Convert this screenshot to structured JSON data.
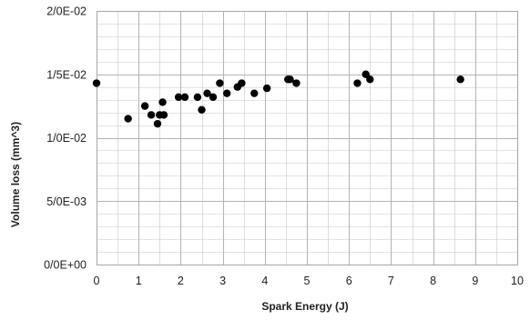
{
  "chart_data": {
    "type": "scatter",
    "title": "",
    "xlabel": "Spark Energy (J)",
    "ylabel": "Volume loss (mm^3)",
    "xlim": [
      0,
      10
    ],
    "ylim": [
      0,
      0.02
    ],
    "x_ticks": [
      0,
      1,
      2,
      3,
      4,
      5,
      6,
      7,
      8,
      9,
      10
    ],
    "x_tick_labels": [
      "0",
      "1",
      "2",
      "3",
      "4",
      "5",
      "6",
      "7",
      "8",
      "9",
      "10"
    ],
    "y_ticks": [
      0,
      0.005,
      0.01,
      0.015,
      0.02
    ],
    "y_tick_labels": [
      "0/0E+00",
      "5/0E-03",
      "1/0E-02",
      "1/5E-02",
      "2/0E-02"
    ],
    "grid": {
      "major": true,
      "minor": true,
      "minor_x_step": 0.5,
      "minor_y_step": 0.001
    },
    "legend": "none",
    "marker_color": "#000000",
    "grid_color": "#c8c8c8",
    "series": [
      {
        "x": [
          0,
          0.75,
          1.15,
          1.3,
          1.45,
          1.5,
          1.57,
          1.6,
          1.95,
          2.1,
          2.4,
          2.5,
          2.63,
          2.77,
          2.93,
          3.1,
          3.35,
          3.45,
          3.75,
          4.05,
          4.55,
          4.6,
          4.75,
          6.2,
          6.4,
          6.5,
          8.65
        ],
        "y": [
          0.0143,
          0.0115,
          0.0125,
          0.0118,
          0.0111,
          0.0118,
          0.0128,
          0.0118,
          0.0132,
          0.0132,
          0.0132,
          0.0122,
          0.0135,
          0.0132,
          0.0143,
          0.0135,
          0.014,
          0.0143,
          0.0135,
          0.0139,
          0.0146,
          0.0146,
          0.0143,
          0.0143,
          0.015,
          0.0146,
          0.0146
        ]
      }
    ]
  }
}
